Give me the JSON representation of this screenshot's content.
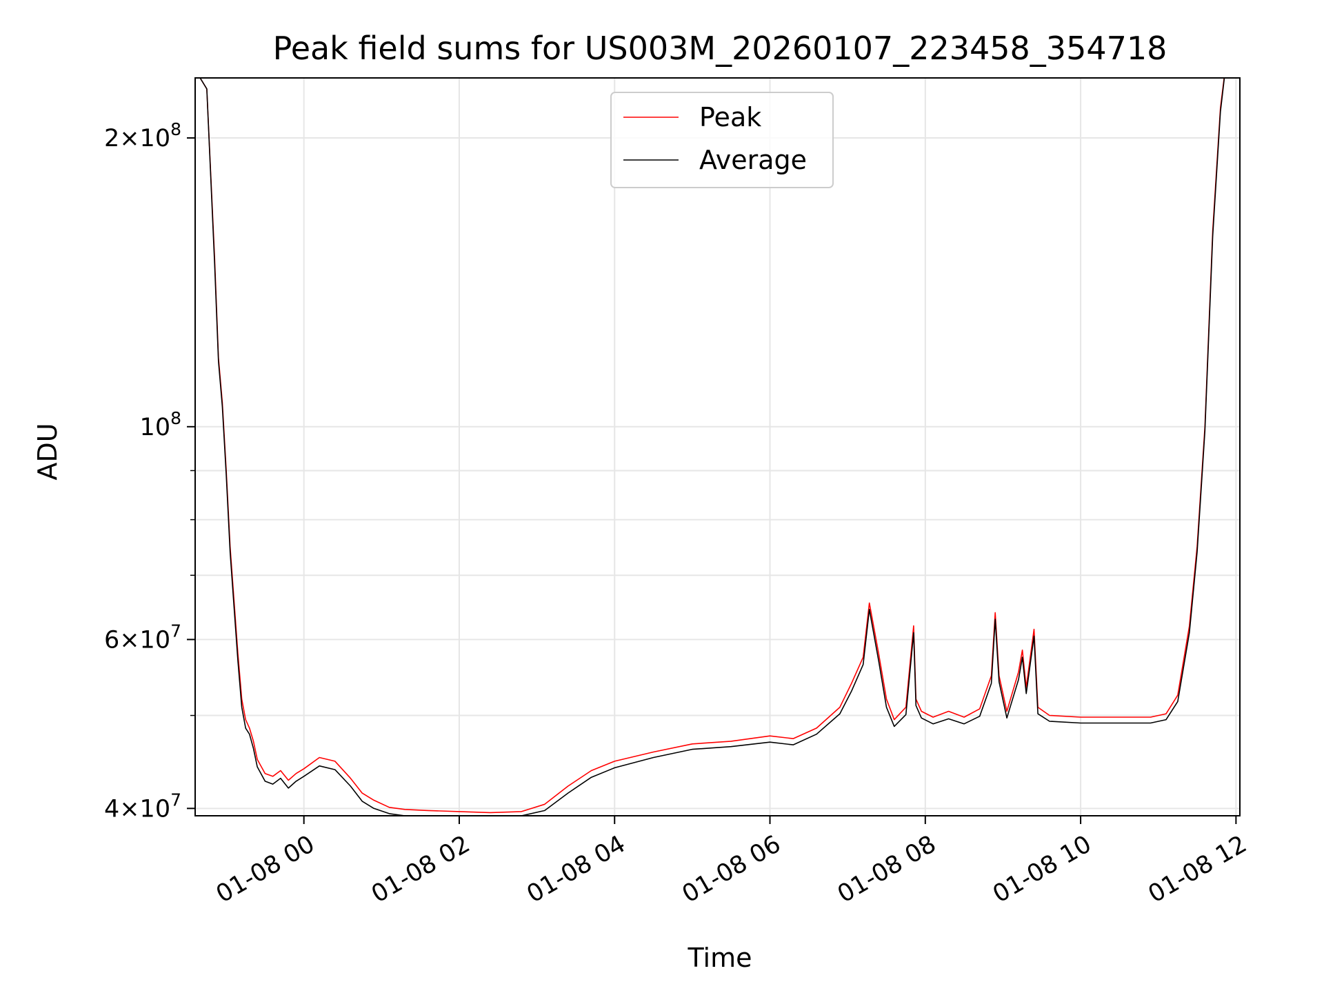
{
  "chart_data": {
    "type": "line",
    "title": "Peak field sums for US003M_20260107_223458_354718",
    "xlabel": "Time",
    "ylabel": "ADU",
    "yscale": "log",
    "xlim": [
      -1.4,
      12.05
    ],
    "ylim": [
      39300000,
      231000000
    ],
    "x_unit": "hours since 01-08 00:00",
    "x_ticks": [
      {
        "value": 0,
        "label": "01-08 00"
      },
      {
        "value": 2,
        "label": "01-08 02"
      },
      {
        "value": 4,
        "label": "01-08 04"
      },
      {
        "value": 6,
        "label": "01-08 06"
      },
      {
        "value": 8,
        "label": "01-08 08"
      },
      {
        "value": 10,
        "label": "01-08 10"
      },
      {
        "value": 12,
        "label": "01-08 12"
      }
    ],
    "y_ticks": [
      {
        "value": 40000000,
        "base": "4",
        "exp": "7"
      },
      {
        "value": 60000000,
        "base": "6",
        "exp": "7"
      },
      {
        "value": 100000000,
        "base": "",
        "exp": "8"
      },
      {
        "value": 200000000,
        "base": "2",
        "exp": "8"
      }
    ],
    "y_minor_ticks": [
      50000000,
      70000000,
      80000000,
      90000000
    ],
    "grid": true,
    "legend_position": "top-center",
    "series": [
      {
        "name": "Peak",
        "color": "#ff0000",
        "x": [
          -1.35,
          -1.25,
          -1.15,
          -1.1,
          -1.05,
          -1.0,
          -0.95,
          -0.9,
          -0.85,
          -0.8,
          -0.75,
          -0.7,
          -0.65,
          -0.6,
          -0.5,
          -0.4,
          -0.3,
          -0.2,
          -0.1,
          0.0,
          0.2,
          0.4,
          0.6,
          0.75,
          0.9,
          1.1,
          1.3,
          1.6,
          2.0,
          2.4,
          2.8,
          3.1,
          3.4,
          3.7,
          4.0,
          4.5,
          5.0,
          5.5,
          6.0,
          6.3,
          6.6,
          6.9,
          7.05,
          7.2,
          7.28,
          7.4,
          7.5,
          7.6,
          7.75,
          7.85,
          7.88,
          7.95,
          8.1,
          8.3,
          8.5,
          8.7,
          8.85,
          8.9,
          8.95,
          9.05,
          9.2,
          9.25,
          9.3,
          9.4,
          9.45,
          9.6,
          10.0,
          10.5,
          10.9,
          11.1,
          11.25,
          11.4,
          11.5,
          11.6,
          11.7,
          11.8,
          11.85
        ],
        "values": [
          232000000,
          225000000,
          150000000,
          118000000,
          106000000,
          90000000,
          75000000,
          66000000,
          58000000,
          52000000,
          49500000,
          48500000,
          47000000,
          45000000,
          43500000,
          43200000,
          43800000,
          42800000,
          43500000,
          44000000,
          45200000,
          44800000,
          43000000,
          41500000,
          40800000,
          40100000,
          39900000,
          39800000,
          39700000,
          39600000,
          39700000,
          40400000,
          42200000,
          43800000,
          44800000,
          45800000,
          46700000,
          47000000,
          47600000,
          47300000,
          48500000,
          51000000,
          54000000,
          57500000,
          65500000,
          58000000,
          52000000,
          49500000,
          51000000,
          62000000,
          52000000,
          50500000,
          49800000,
          50500000,
          49800000,
          50800000,
          55000000,
          64000000,
          55000000,
          50500000,
          55500000,
          58500000,
          53500000,
          61500000,
          51000000,
          50000000,
          49800000,
          49800000,
          49800000,
          50200000,
          52500000,
          62000000,
          75000000,
          100000000,
          160000000,
          215000000,
          232000000
        ]
      },
      {
        "name": "Average",
        "color": "#000000",
        "x": [
          -1.35,
          -1.25,
          -1.15,
          -1.1,
          -1.05,
          -1.0,
          -0.95,
          -0.9,
          -0.85,
          -0.8,
          -0.75,
          -0.7,
          -0.65,
          -0.6,
          -0.5,
          -0.4,
          -0.3,
          -0.2,
          -0.1,
          0.0,
          0.2,
          0.4,
          0.6,
          0.75,
          0.9,
          1.1,
          1.3,
          1.6,
          2.0,
          2.4,
          2.8,
          3.1,
          3.4,
          3.7,
          4.0,
          4.5,
          5.0,
          5.5,
          6.0,
          6.3,
          6.6,
          6.9,
          7.05,
          7.2,
          7.28,
          7.4,
          7.5,
          7.6,
          7.75,
          7.85,
          7.88,
          7.95,
          8.1,
          8.3,
          8.5,
          8.7,
          8.85,
          8.9,
          8.95,
          9.05,
          9.2,
          9.25,
          9.3,
          9.4,
          9.45,
          9.6,
          10.0,
          10.5,
          10.9,
          11.1,
          11.25,
          11.4,
          11.5,
          11.6,
          11.7,
          11.8,
          11.85
        ],
        "values": [
          232000000,
          225000000,
          148000000,
          117000000,
          105000000,
          89000000,
          74000000,
          65000000,
          57000000,
          51000000,
          48500000,
          47800000,
          46200000,
          44200000,
          42700000,
          42400000,
          43000000,
          42000000,
          42700000,
          43200000,
          44300000,
          43900000,
          42200000,
          40700000,
          40000000,
          39500000,
          39300000,
          39300000,
          39300000,
          39300000,
          39300000,
          39800000,
          41500000,
          43100000,
          44100000,
          45200000,
          46100000,
          46400000,
          46900000,
          46600000,
          47800000,
          50200000,
          53000000,
          56500000,
          64500000,
          57000000,
          51000000,
          48700000,
          50100000,
          61000000,
          51200000,
          49700000,
          49000000,
          49600000,
          49000000,
          49900000,
          54000000,
          63000000,
          54200000,
          49700000,
          54500000,
          57500000,
          52700000,
          60500000,
          50200000,
          49300000,
          49100000,
          49100000,
          49100000,
          49500000,
          51700000,
          61000000,
          74000000,
          99000000,
          158000000,
          213000000,
          231000000
        ]
      }
    ]
  }
}
